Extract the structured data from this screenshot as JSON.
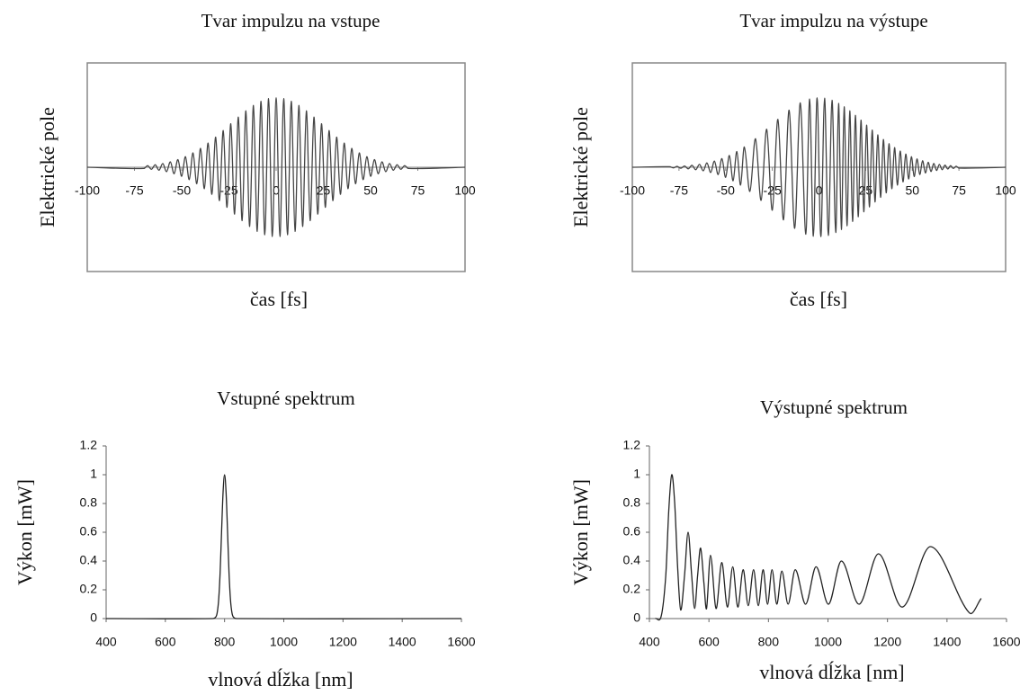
{
  "chart_data": [
    {
      "type": "line",
      "title": "Tvar impulzu na vstupe",
      "xlabel": "čas [fs]",
      "ylabel": "Elektrické pole",
      "color": "#444444",
      "xlim": [
        -100,
        100
      ],
      "xticks": [
        -100,
        -75,
        -50,
        -25,
        0,
        25,
        50,
        75,
        100
      ],
      "ylim": [
        -1.5,
        1.5
      ],
      "x": [
        -100,
        -70,
        -68,
        -66,
        -64,
        -62,
        -60,
        -58,
        -56,
        -54,
        -52,
        -50,
        -48,
        -46,
        -44,
        -42,
        -40,
        -38,
        -36,
        -34,
        -32,
        -30,
        -28,
        -26,
        -24,
        -22,
        -20,
        -18,
        -16,
        -14,
        -12,
        -10,
        -8,
        -6,
        -4,
        -2,
        0,
        2,
        4,
        6,
        8,
        10,
        12,
        14,
        16,
        18,
        20,
        22,
        24,
        26,
        28,
        30,
        32,
        34,
        36,
        38,
        40,
        42,
        44,
        46,
        48,
        50,
        52,
        54,
        56,
        58,
        60,
        62,
        64,
        66,
        68,
        70,
        100
      ],
      "values": [
        0,
        -0.018,
        0.023,
        -0.029,
        0.035,
        -0.043,
        0.053,
        -0.064,
        0.077,
        -0.093,
        0.11,
        -0.13,
        0.152,
        -0.178,
        0.206,
        -0.237,
        0.271,
        -0.308,
        0.347,
        -0.389,
        0.433,
        -0.48,
        0.527,
        -0.576,
        0.625,
        -0.674,
        0.721,
        -0.768,
        0.811,
        -0.852,
        0.889,
        -0.922,
        0.949,
        -0.971,
        0.987,
        -0.997,
        1,
        -0.997,
        0.987,
        -0.971,
        0.949,
        -0.922,
        0.889,
        -0.852,
        0.811,
        -0.768,
        0.721,
        -0.674,
        0.625,
        -0.576,
        0.527,
        -0.48,
        0.433,
        -0.389,
        0.347,
        -0.308,
        0.271,
        -0.237,
        0.206,
        -0.178,
        0.152,
        -0.13,
        0.11,
        -0.093,
        0.077,
        -0.064,
        0.053,
        -0.043,
        0.035,
        -0.029,
        0.023,
        -0.018,
        0
      ]
    },
    {
      "type": "line",
      "title": "Tvar impulzu na výstupe",
      "xlabel": "čas [fs]",
      "ylabel": "Elektrické pole",
      "color": "#444444",
      "xlim": [
        -100,
        100
      ],
      "xticks": [
        -100,
        -75,
        -50,
        -25,
        0,
        25,
        50,
        75,
        100
      ],
      "ylim": [
        -1.5,
        1.5
      ],
      "x": [
        -100,
        -80,
        -78,
        -76,
        -74,
        -72,
        -70,
        -68,
        -66,
        -64,
        -62,
        -60,
        -58,
        -56,
        -54,
        -52,
        -50,
        -48,
        -46,
        -44,
        -42,
        -40,
        -37,
        -34,
        -31,
        -28,
        -25,
        -22,
        -19,
        -16,
        -13,
        -10,
        -7,
        -5,
        -3,
        -1,
        1,
        3,
        5,
        7,
        9,
        10.5,
        12,
        13.5,
        15,
        16.5,
        18,
        19.5,
        21,
        22.5,
        24,
        25.5,
        27,
        28.5,
        30,
        31.5,
        33,
        34.5,
        36,
        37.5,
        39,
        40.5,
        42,
        43.5,
        45,
        46.5,
        48,
        49.5,
        51,
        52.5,
        54,
        55.5,
        57,
        58.5,
        60,
        61.5,
        63,
        64.5,
        66,
        67.5,
        69,
        70.5,
        72,
        73.5,
        75,
        100
      ],
      "values": [
        0,
        0.007,
        -0.009,
        0.012,
        -0.015,
        0.018,
        -0.023,
        0.028,
        -0.035,
        0.042,
        -0.052,
        0.062,
        -0.075,
        0.089,
        -0.105,
        0.124,
        -0.145,
        0.169,
        -0.195,
        0.225,
        -0.256,
        0.291,
        -0.348,
        0.41,
        -0.476,
        0.546,
        -0.618,
        0.688,
        -0.757,
        0.821,
        -0.878,
        0.926,
        -0.963,
        0.981,
        -0.993,
        0.999,
        -0.999,
        0.993,
        -0.981,
        0.963,
        -0.939,
        0.918,
        -0.895,
        0.869,
        -0.841,
        0.811,
        -0.779,
        0.746,
        -0.712,
        0.677,
        -0.641,
        0.605,
        -0.57,
        0.534,
        -0.499,
        0.465,
        -0.432,
        0.399,
        -0.368,
        0.338,
        -0.309,
        0.282,
        -0.256,
        0.232,
        -0.21,
        0.189,
        -0.169,
        0.151,
        -0.134,
        0.119,
        -0.105,
        0.093,
        -0.082,
        0.071,
        -0.062,
        0.054,
        -0.047,
        0.04,
        -0.035,
        0.03,
        -0.025,
        0.022,
        -0.018,
        0.015,
        -0.013,
        0
      ]
    },
    {
      "type": "line",
      "title": "Vstupné spektrum",
      "xlabel": "vlnová dĺžka [nm]",
      "ylabel": "Výkon [mW]",
      "color": "#222222",
      "xlim": [
        400,
        1600
      ],
      "xticks": [
        400,
        600,
        800,
        1000,
        1200,
        1400,
        1600
      ],
      "ylim": [
        0,
        1.2
      ],
      "yticks": [
        0,
        0.2,
        0.4,
        0.6,
        0.8,
        1,
        1.2
      ],
      "x": [
        400,
        760,
        770,
        775,
        780,
        785,
        790,
        795,
        800,
        805,
        810,
        815,
        820,
        825,
        830,
        840,
        1600
      ],
      "values": [
        0,
        0,
        0.01,
        0.04,
        0.13,
        0.32,
        0.61,
        0.88,
        1,
        0.88,
        0.61,
        0.32,
        0.13,
        0.04,
        0.01,
        0,
        0
      ]
    },
    {
      "type": "line",
      "title": "Výstupné spektrum",
      "xlabel": "vlnová dĺžka [nm]",
      "ylabel": "Výkon [mW]",
      "color": "#222222",
      "xlim": [
        400,
        1600
      ],
      "xticks": [
        400,
        600,
        800,
        1000,
        1200,
        1400,
        1600
      ],
      "ylim": [
        0,
        1.2
      ],
      "yticks": [
        0,
        0.2,
        0.4,
        0.6,
        0.8,
        1,
        1.2
      ],
      "x": [
        420,
        440,
        455,
        465,
        475,
        485,
        495,
        505,
        518,
        530,
        542,
        552,
        562,
        572,
        583,
        592,
        605,
        624,
        643,
        662,
        680,
        697,
        715,
        732,
        750,
        766,
        782,
        797,
        812,
        828,
        845,
        866,
        890,
        925,
        960,
        1002,
        1045,
        1105,
        1170,
        1250,
        1345,
        1475,
        1515
      ],
      "values": [
        0,
        0.02,
        0.3,
        0.75,
        1,
        0.8,
        0.35,
        0.06,
        0.3,
        0.6,
        0.3,
        0.07,
        0.3,
        0.49,
        0.25,
        0.07,
        0.44,
        0.07,
        0.39,
        0.08,
        0.36,
        0.08,
        0.34,
        0.09,
        0.34,
        0.09,
        0.34,
        0.1,
        0.34,
        0.1,
        0.33,
        0.1,
        0.34,
        0.1,
        0.36,
        0.1,
        0.4,
        0.1,
        0.45,
        0.08,
        0.5,
        0.04,
        0.14
      ]
    }
  ]
}
